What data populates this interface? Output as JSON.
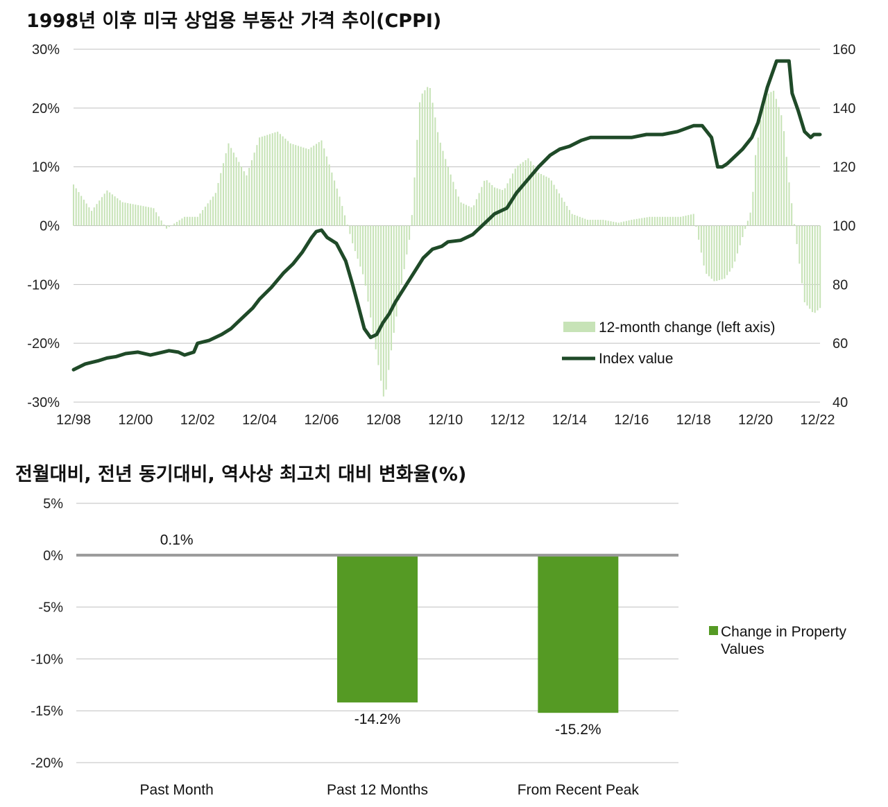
{
  "chart_data": [
    {
      "type": "bar+line",
      "title": "1998년 이후 미국 상업용 부동산 가격 추이(CPPI)",
      "x_tick_labels": [
        "12/98",
        "12/00",
        "12/02",
        "12/04",
        "12/06",
        "12/08",
        "12/10",
        "12/12",
        "12/14",
        "12/16",
        "12/18",
        "12/20",
        "12/22"
      ],
      "left_axis": {
        "ticks": [
          "30%",
          "20%",
          "10%",
          "0%",
          "-10%",
          "-20%",
          "-30%"
        ],
        "ylim": [
          -30,
          30
        ]
      },
      "right_axis": {
        "ticks": [
          "160",
          "140",
          "120",
          "100",
          "80",
          "60",
          "40"
        ],
        "ylim": [
          40,
          160
        ]
      },
      "legend": {
        "bar_label": "12-month change (left axis)",
        "line_label": "Index value",
        "position": "bottom-right"
      },
      "colors": {
        "bar": "#c7e3b7",
        "line": "#1f4a28",
        "grid": "#bfbfbf"
      },
      "bar_series": {
        "name": "12-month change (left axis)",
        "x": [
          1998.92,
          1999.5,
          2000.0,
          2000.5,
          2001.0,
          2001.5,
          2001.92,
          2002.5,
          2002.92,
          2003.5,
          2003.92,
          2004.5,
          2004.92,
          2005.5,
          2005.92,
          2006.5,
          2006.92,
          2007.5,
          2007.92,
          2008.3,
          2008.7,
          2008.95,
          2009.2,
          2009.5,
          2009.8,
          2010.1,
          2010.4,
          2010.7,
          2011.0,
          2011.4,
          2011.8,
          2012.2,
          2012.5,
          2012.8,
          2013.2,
          2013.6,
          2013.92,
          2014.3,
          2014.7,
          2015.0,
          2015.5,
          2016.0,
          2016.5,
          2016.92,
          2017.5,
          2017.92,
          2018.5,
          2018.92,
          2019.3,
          2019.6,
          2019.92,
          2020.2,
          2020.5,
          2020.8,
          2020.92,
          2021.2,
          2021.5,
          2021.8,
          2022.0,
          2022.2,
          2022.5,
          2022.8,
          2023.0
        ],
        "values": [
          7,
          2.5,
          6,
          4,
          3.5,
          3,
          -0.5,
          1.5,
          1.5,
          5.5,
          14,
          8.5,
          15,
          16,
          14,
          13,
          14.5,
          5,
          -3,
          -9,
          -22,
          -30,
          -20,
          -10,
          -1,
          22,
          24,
          15,
          10,
          4,
          3,
          8,
          6.5,
          6,
          10,
          11.5,
          9,
          8,
          4.5,
          2,
          1,
          1,
          0.5,
          1,
          1.5,
          1.5,
          1.5,
          2,
          -8,
          -9.5,
          -9,
          -7,
          -2,
          3,
          12,
          22,
          23,
          18,
          7.5,
          -1,
          -13,
          -15,
          -14
        ]
      },
      "line_series": {
        "name": "Index value",
        "x": [
          1998.92,
          1999.3,
          1999.7,
          2000.0,
          2000.3,
          2000.6,
          2001.0,
          2001.4,
          2001.8,
          2002.0,
          2002.3,
          2002.5,
          2002.8,
          2002.92,
          2003.3,
          2003.7,
          2004.0,
          2004.3,
          2004.7,
          2004.92,
          2005.3,
          2005.7,
          2006.0,
          2006.3,
          2006.6,
          2006.75,
          2006.92,
          2007.1,
          2007.4,
          2007.7,
          2007.92,
          2008.1,
          2008.3,
          2008.5,
          2008.7,
          2008.9,
          2009.1,
          2009.3,
          2009.6,
          2009.9,
          2010.2,
          2010.5,
          2010.8,
          2011.0,
          2011.4,
          2011.8,
          2012.2,
          2012.5,
          2012.9,
          2013.2,
          2013.6,
          2013.92,
          2014.3,
          2014.6,
          2014.92,
          2015.3,
          2015.6,
          2016.0,
          2016.5,
          2016.92,
          2017.4,
          2017.92,
          2018.4,
          2018.92,
          2019.2,
          2019.5,
          2019.7,
          2019.85,
          2020.0,
          2020.2,
          2020.5,
          2020.8,
          2021.0,
          2021.3,
          2021.6,
          2021.8,
          2022.0,
          2022.1,
          2022.3,
          2022.5,
          2022.7,
          2022.8,
          2023.0
        ],
        "values": [
          51,
          53,
          54,
          55,
          55.5,
          56.5,
          57,
          56,
          57,
          57.5,
          57,
          56,
          57,
          60,
          61,
          63,
          65,
          68,
          72,
          75,
          79,
          84,
          87,
          91,
          96,
          98,
          98.5,
          96,
          94,
          88,
          80,
          73,
          65,
          62,
          63,
          67,
          70,
          74,
          79,
          84,
          89,
          92,
          93,
          94.5,
          95,
          97,
          101,
          104,
          106,
          111,
          116,
          120,
          124,
          126,
          127,
          129,
          130,
          130,
          130,
          130,
          131,
          131,
          132,
          134,
          134,
          130,
          120,
          120,
          121,
          123,
          126,
          130,
          135,
          147,
          156,
          156,
          156,
          145,
          139,
          132,
          130,
          131,
          131
        ]
      }
    },
    {
      "type": "bar",
      "title": "전월대비, 전년 동기대비, 역사상 최고치 대비 변화율(%)",
      "categories": [
        "Past Month",
        "Past 12 Months",
        "From Recent Peak"
      ],
      "values": [
        0.1,
        -14.2,
        -15.2
      ],
      "data_labels": [
        "0.1%",
        "-14.2%",
        "-15.2%"
      ],
      "y_ticks": [
        "5%",
        "0%",
        "-5%",
        "-10%",
        "-15%",
        "-20%"
      ],
      "ylim": [
        -20,
        5
      ],
      "legend": {
        "label_line1": "Change in Property",
        "label_line2": "Values",
        "position": "right"
      },
      "colors": {
        "bar": "#559a24",
        "zero_line": "#999999",
        "grid": "#bfbfbf"
      }
    }
  ]
}
